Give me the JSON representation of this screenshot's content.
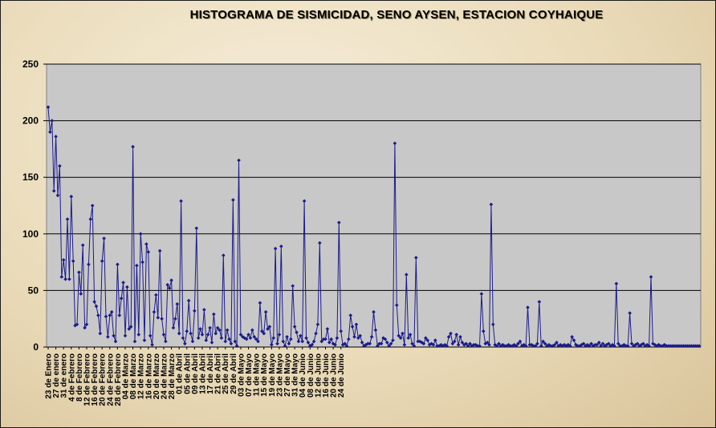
{
  "chart_data": {
    "type": "line",
    "title": "HISTOGRAMA DE SISMICIDAD, SENO AYSEN, ESTACION COYHAIQUE",
    "xlabel": "",
    "ylabel": "",
    "ylim": [
      0,
      250
    ],
    "yticks": [
      0,
      50,
      100,
      150,
      200,
      250
    ],
    "grid": true,
    "legend": "none",
    "series_color": "#1a1a8c",
    "plot_bg": "#c8c8c8",
    "start_date": "23 de Enero",
    "x_tick_labels": [
      "23 de Enero",
      "27 de enero",
      "31 de enero",
      "4 de Febrero",
      "8 de Febrero",
      "12 de Febrero",
      "16 de Febrero",
      "20 de Febrero",
      "24 de Febrero",
      "28 de Febrero",
      "04 de Marzo",
      "08 de Marzo",
      "12 de Marzo",
      "16 de Marzo",
      "20 de Marzo",
      "24 de Marzo",
      "28 de Marzo",
      "01 de Abril",
      "05 de Abril",
      "09 de Abril",
      "13 de Abril",
      "17 de Abril",
      "21 de Abril",
      "25 de Abril",
      "29 de Abril",
      "03 de Mayo",
      "07 de Mayo",
      "11 de Mayo",
      "15 de Mayo",
      "19 de Mayo",
      "23 de Mayo",
      "27 de Mayo",
      "31 de Mayo",
      "04 de Junio",
      "08 de Junio",
      "12 de Junio",
      "16 de Junio",
      "20 de Junio",
      "24 de Junio"
    ],
    "values": [
      212,
      190,
      200,
      138,
      186,
      134,
      160,
      62,
      77,
      60,
      113,
      60,
      133,
      76,
      19,
      20,
      66,
      47,
      90,
      17,
      20,
      73,
      113,
      125,
      40,
      36,
      28,
      12,
      76,
      96,
      27,
      9,
      28,
      31,
      10,
      5,
      73,
      28,
      43,
      57,
      10,
      53,
      16,
      18,
      177,
      5,
      72,
      11,
      100,
      75,
      6,
      91,
      84,
      10,
      2,
      31,
      46,
      26,
      85,
      25,
      11,
      5,
      55,
      52,
      59,
      17,
      25,
      38,
      12,
      129,
      8,
      3,
      14,
      41,
      12,
      5,
      32,
      105,
      8,
      16,
      11,
      33,
      6,
      11,
      17,
      4,
      29,
      12,
      17,
      15,
      8,
      81,
      5,
      15,
      7,
      3,
      130,
      5,
      1,
      165,
      11,
      9,
      8,
      7,
      11,
      8,
      15,
      9,
      7,
      5,
      39,
      14,
      12,
      31,
      16,
      18,
      2,
      8,
      87,
      3,
      11,
      89,
      5,
      1,
      9,
      3,
      7,
      54,
      18,
      13,
      5,
      10,
      5,
      129,
      8,
      4,
      1,
      2,
      5,
      12,
      20,
      92,
      5,
      7,
      7,
      16,
      4,
      7,
      3,
      2,
      8,
      110,
      14,
      2,
      3,
      1,
      7,
      28,
      18,
      9,
      20,
      8,
      10,
      4,
      1,
      2,
      3,
      3,
      9,
      31,
      15,
      1,
      3,
      3,
      8,
      7,
      4,
      1,
      3,
      6,
      180,
      37,
      10,
      8,
      12,
      2,
      64,
      8,
      11,
      3,
      1,
      79,
      5,
      5,
      4,
      3,
      8,
      6,
      2,
      3,
      2,
      6,
      1,
      1,
      2,
      1,
      2,
      1,
      9,
      12,
      3,
      5,
      11,
      2,
      9,
      4,
      2,
      3,
      1,
      3,
      1,
      2,
      2,
      1,
      1,
      47,
      14,
      3,
      4,
      2,
      126,
      20,
      2,
      1,
      3,
      1,
      2,
      1,
      1,
      2,
      1,
      1,
      2,
      1,
      3,
      5,
      1,
      2,
      1,
      35,
      2,
      2,
      1,
      1,
      3,
      40,
      1,
      5,
      3,
      1,
      2,
      1,
      1,
      2,
      4,
      1,
      2,
      1,
      2,
      1,
      2,
      1,
      9,
      6,
      2,
      1,
      1,
      2,
      3,
      1,
      2,
      1,
      3,
      1,
      2,
      2,
      4,
      1,
      3,
      1,
      2,
      3,
      1,
      2,
      1,
      56,
      3,
      1,
      1,
      2,
      1,
      1,
      30,
      3,
      1,
      2,
      3,
      1,
      2,
      3,
      1,
      2,
      1,
      62,
      3,
      2,
      1,
      2,
      1,
      1,
      2,
      1,
      1,
      1,
      1,
      1,
      1,
      1,
      1,
      1,
      1,
      1,
      1,
      1,
      1,
      1,
      1,
      1,
      1
    ]
  }
}
